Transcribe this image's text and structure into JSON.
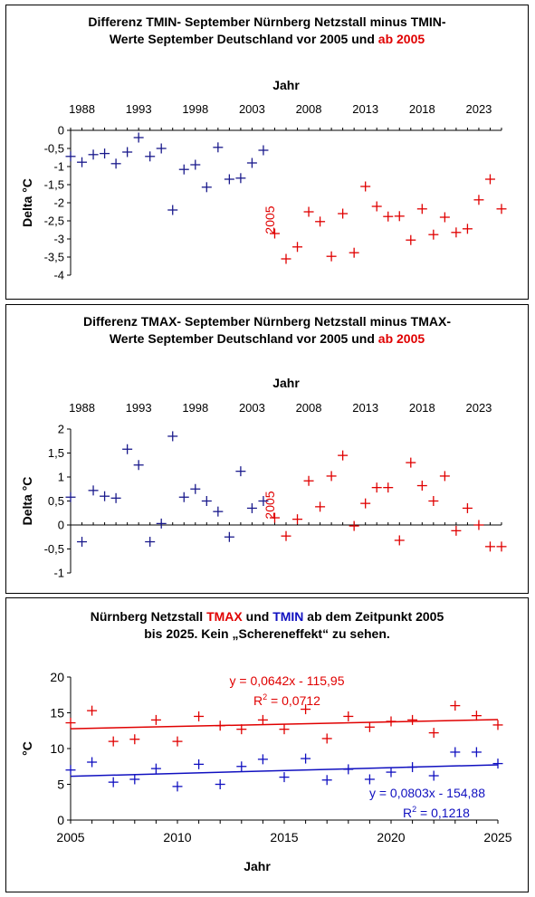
{
  "charts": [
    {
      "title_line1": "Differenz TMIN- September Nürnberg Netzstall minus TMIN-",
      "title_line2_before": "Werte September Deutschland vor 2005 und ",
      "title_line2_highlight": "ab 2005"
    },
    {
      "title_line1": "Differenz TMAX- September Nürnberg Netzstall minus TMAX-",
      "title_line2_before": "Werte September Deutschland vor 2005 und ",
      "title_line2_highlight": "ab 2005"
    },
    {
      "title_line1_before": "Nürnberg Netzstall ",
      "title_line1_red": "TMAX",
      "title_line1_mid": " und ",
      "title_line1_blue": "TMIN",
      "title_line1_after": " ab dem Zeitpunkt 2005",
      "title_line2": "bis 2025. Kein „Schereneffekt“ zu sehen."
    }
  ],
  "chart_data": [
    {
      "type": "scatter",
      "xlabel": "Jahr",
      "ylabel": "Delta °C",
      "x_axis_position": "top",
      "xlim": [
        1987,
        2025
      ],
      "ylim": [
        -4,
        0
      ],
      "xticks": [
        "1988",
        "1993",
        "1998",
        "2003",
        "2008",
        "2013",
        "2018",
        "2023"
      ],
      "yticks": [
        "0",
        "-0,5",
        "-1",
        "-1,5",
        "-2",
        "-2,5",
        "-3",
        "-3,5",
        "-4"
      ],
      "ytick_values": [
        0,
        -0.5,
        -1,
        -1.5,
        -2,
        -2.5,
        -3,
        -3.5,
        -4
      ],
      "annotation": "2005",
      "grid": false,
      "series": [
        {
          "color": "#1a1a8c",
          "x": [
            1987,
            1988,
            1989,
            1990,
            1991,
            1992,
            1993,
            1994,
            1995,
            1996,
            1997,
            1998,
            1999,
            2000,
            2001,
            2002,
            2003,
            2004
          ],
          "y": [
            -0.72,
            -0.88,
            -0.67,
            -0.64,
            -0.92,
            -0.6,
            -0.2,
            -0.72,
            -0.5,
            -2.2,
            -1.08,
            -0.95,
            -1.57,
            -0.47,
            -1.35,
            -1.32,
            -0.9,
            -0.55
          ]
        },
        {
          "color": "#e00000",
          "x": [
            2005,
            2006,
            2007,
            2008,
            2009,
            2010,
            2011,
            2012,
            2013,
            2014,
            2015,
            2016,
            2017,
            2018,
            2019,
            2020,
            2021,
            2022,
            2023,
            2024,
            2025
          ],
          "y": [
            -2.85,
            -3.55,
            -3.22,
            -2.25,
            -2.52,
            -3.48,
            -2.3,
            -3.38,
            -1.55,
            -2.1,
            -2.38,
            -2.37,
            -3.03,
            -2.17,
            -2.88,
            -2.4,
            -2.82,
            -2.72,
            -1.92,
            -1.35,
            -2.17
          ]
        }
      ]
    },
    {
      "type": "scatter",
      "xlabel": "Jahr",
      "ylabel": "Delta °C",
      "x_axis_position": "top",
      "xlim": [
        1987,
        2025
      ],
      "ylim": [
        -1,
        2
      ],
      "xticks": [
        "1988",
        "1993",
        "1998",
        "2003",
        "2008",
        "2013",
        "2018",
        "2023"
      ],
      "yticks": [
        "2",
        "1,5",
        "1",
        "0,5",
        "0",
        "-0,5",
        "-1"
      ],
      "ytick_values": [
        2,
        1.5,
        1,
        0.5,
        0,
        -0.5,
        -1
      ],
      "annotation": "2005",
      "grid": false,
      "series": [
        {
          "color": "#1a1a8c",
          "x": [
            1987,
            1988,
            1989,
            1990,
            1991,
            1992,
            1993,
            1994,
            1995,
            1996,
            1997,
            1998,
            1999,
            2000,
            2001,
            2002,
            2003,
            2004
          ],
          "y": [
            0.58,
            -0.35,
            0.72,
            0.6,
            0.56,
            1.58,
            1.25,
            -0.35,
            0.03,
            1.85,
            0.58,
            0.75,
            0.5,
            0.28,
            -0.25,
            1.12,
            0.35,
            0.5
          ]
        },
        {
          "color": "#e00000",
          "x": [
            2005,
            2006,
            2007,
            2008,
            2009,
            2010,
            2011,
            2012,
            2013,
            2014,
            2015,
            2016,
            2017,
            2018,
            2019,
            2020,
            2021,
            2022,
            2023,
            2024,
            2025
          ],
          "y": [
            0.15,
            -0.23,
            0.12,
            0.92,
            0.38,
            1.02,
            1.45,
            -0.02,
            0.45,
            0.78,
            0.78,
            -0.32,
            1.3,
            0.82,
            0.5,
            1.02,
            -0.12,
            0.35,
            0.0,
            -0.45,
            -0.45
          ]
        }
      ]
    },
    {
      "type": "scatter",
      "xlabel": "Jahr",
      "ylabel": "°C",
      "xlim": [
        2005,
        2025
      ],
      "ylim": [
        0,
        20
      ],
      "xticks": [
        "2005",
        "2010",
        "2015",
        "2020",
        "2025"
      ],
      "xtick_values": [
        2005,
        2010,
        2015,
        2020,
        2025
      ],
      "yticks": [
        "20",
        "15",
        "10",
        "5",
        "0"
      ],
      "ytick_values": [
        20,
        15,
        10,
        5,
        0
      ],
      "grid": false,
      "series": [
        {
          "name": "TMAX",
          "color": "#e00000",
          "x": [
            2005,
            2006,
            2007,
            2008,
            2009,
            2010,
            2011,
            2012,
            2013,
            2014,
            2015,
            2016,
            2017,
            2018,
            2019,
            2020,
            2021,
            2022,
            2023,
            2024,
            2025
          ],
          "y": [
            13.6,
            15.3,
            11.0,
            11.3,
            14.0,
            11.0,
            14.5,
            13.2,
            12.7,
            14.0,
            12.7,
            15.5,
            11.4,
            14.5,
            13.0,
            13.8,
            14.0,
            12.2,
            16.0,
            14.6,
            13.3
          ],
          "trend": {
            "slope": 0.0642,
            "intercept": -115.95
          },
          "equation": "y = 0,0642x - 115,95",
          "r2_prefix": "R",
          "r2_value": " = 0,0712"
        },
        {
          "name": "TMIN",
          "color": "#1010c0",
          "x": [
            2005,
            2006,
            2007,
            2008,
            2009,
            2010,
            2011,
            2012,
            2013,
            2014,
            2015,
            2016,
            2017,
            2018,
            2019,
            2020,
            2021,
            2022,
            2023,
            2024,
            2025
          ],
          "y": [
            7.0,
            8.1,
            5.3,
            5.7,
            7.2,
            4.7,
            7.8,
            5.0,
            7.5,
            8.5,
            6.0,
            8.6,
            5.6,
            7.1,
            5.7,
            6.7,
            7.4,
            6.2,
            9.5,
            9.5,
            7.9
          ],
          "trend": {
            "slope": 0.0803,
            "intercept": -154.88
          },
          "equation": "y = 0,0803x - 154,88",
          "r2_prefix": "R",
          "r2_value": " = 0,1218"
        }
      ]
    }
  ]
}
